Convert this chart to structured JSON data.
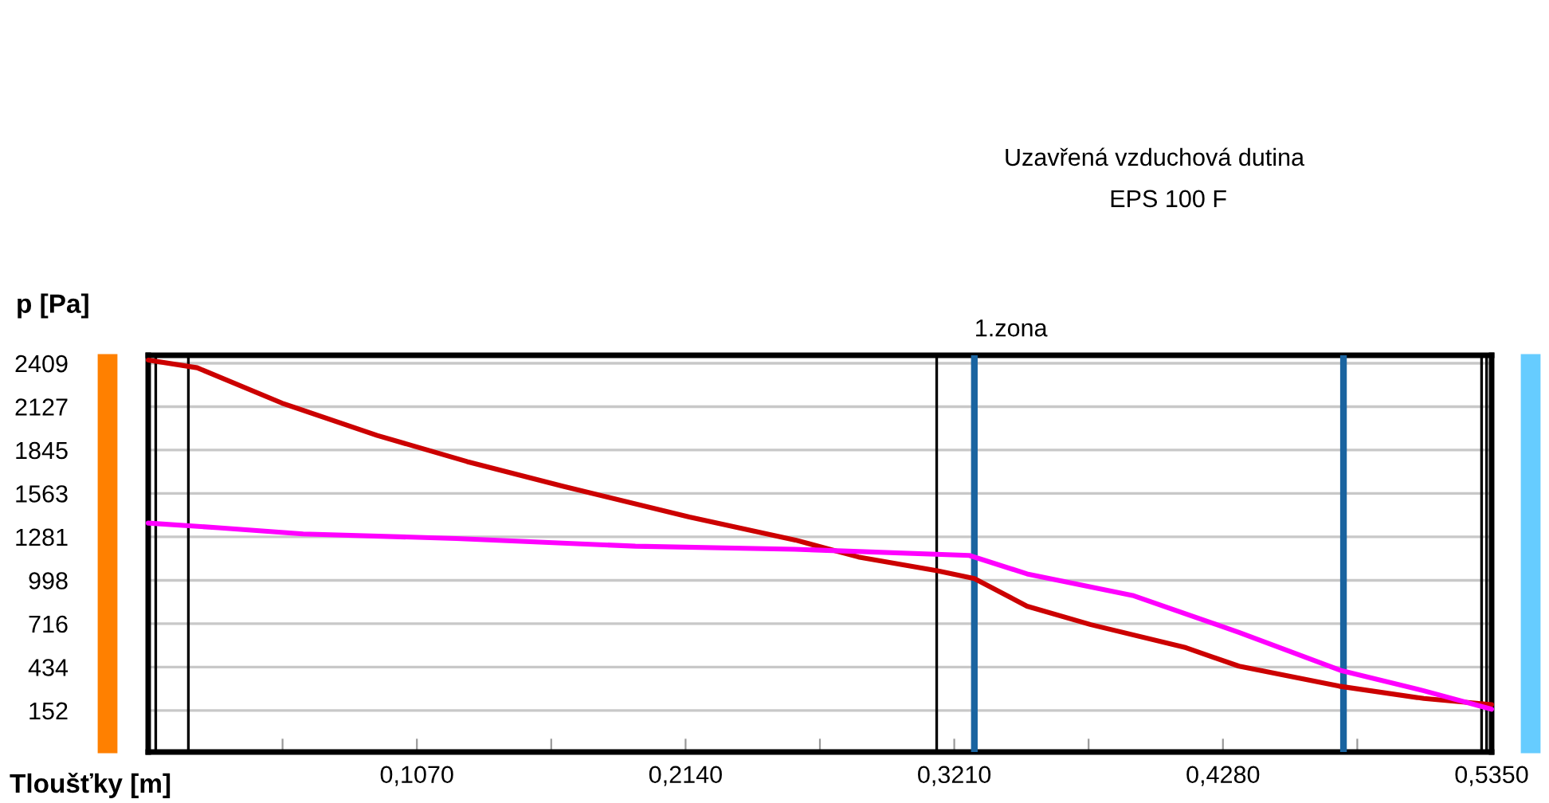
{
  "chart_data": {
    "type": "line",
    "xlabel": "Tloušťky [m]",
    "ylabel": "p [Pa]",
    "xlim": [
      0,
      0.535
    ],
    "ylim": [
      -118,
      2461
    ],
    "xticks": [
      {
        "value": 0.0535,
        "label": null
      },
      {
        "value": 0.107,
        "label": "0,1070"
      },
      {
        "value": 0.1605,
        "label": null
      },
      {
        "value": 0.214,
        "label": "0,2140"
      },
      {
        "value": 0.2675,
        "label": null
      },
      {
        "value": 0.321,
        "label": "0,3210"
      },
      {
        "value": 0.3745,
        "label": null
      },
      {
        "value": 0.428,
        "label": "0,4280"
      },
      {
        "value": 0.4815,
        "label": null
      },
      {
        "value": 0.535,
        "label": "0,5350"
      }
    ],
    "yticks": [
      152,
      434,
      716,
      998,
      1281,
      1563,
      1845,
      2127,
      2409
    ],
    "grid": "y",
    "marker": "none",
    "line_style": "solid",
    "series": [
      {
        "color": "#cc0000",
        "x": [
          0,
          0.0195,
          0.0533,
          0.0912,
          0.127,
          0.165,
          0.2155,
          0.2577,
          0.2828,
          0.3143,
          0.329,
          0.35,
          0.3754,
          0.4133,
          0.4344,
          0.4743,
          0.508,
          0.535
        ],
        "values": [
          2430,
          2380,
          2150,
          1940,
          1770,
          1610,
          1410,
          1260,
          1150,
          1060,
          1010,
          830,
          710,
          560,
          440,
          310,
          230,
          190
        ]
      },
      {
        "color": "#ff00ff",
        "x": [
          0,
          0.028,
          0.0617,
          0.1227,
          0.194,
          0.2575,
          0.327,
          0.35,
          0.392,
          0.4344,
          0.4754,
          0.508,
          0.535
        ],
        "values": [
          1370,
          1340,
          1300,
          1270,
          1220,
          1200,
          1160,
          1040,
          900,
          660,
          410,
          280,
          160
        ]
      }
    ],
    "ref_lines": [
      {
        "axis": "x",
        "value": 0.003,
        "color": "#000000"
      },
      {
        "axis": "x",
        "value": 0.016,
        "color": "#000000"
      },
      {
        "axis": "x",
        "value": 0.314,
        "color": "#000000"
      },
      {
        "axis": "x",
        "value": 0.531,
        "color": "#000000"
      },
      {
        "axis": "x",
        "value": 0.533,
        "color": "#000000"
      },
      {
        "axis": "x",
        "value": 0.329,
        "label": "1.zona",
        "color": "#1a64a0"
      },
      {
        "axis": "x",
        "value": 0.476,
        "color": "#1a64a0"
      }
    ],
    "annotations": [
      "Uzavřená vzduchová dutina",
      "EPS 100 F"
    ]
  }
}
